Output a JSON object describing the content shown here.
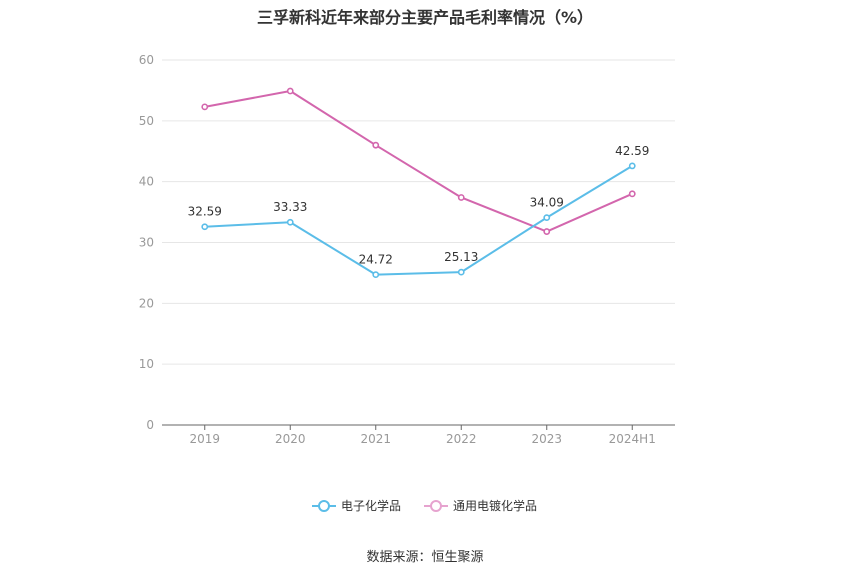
{
  "chart_data": {
    "type": "line",
    "title": "三孚新科近年来部分主要产品毛利率情况（%）",
    "categories": [
      "2019",
      "2020",
      "2021",
      "2022",
      "2023",
      "2024H1"
    ],
    "ylim": [
      0,
      60
    ],
    "yticks": [
      0,
      10,
      20,
      30,
      40,
      50,
      60
    ],
    "grid": true,
    "legend_position": "bottom",
    "series": [
      {
        "name": "电子化学品",
        "values": [
          32.59,
          33.33,
          24.72,
          25.13,
          34.09,
          42.59
        ],
        "labels": [
          "32.59",
          "33.33",
          "24.72",
          "25.13",
          "34.09",
          "42.59"
        ],
        "color": "#5bbde8"
      },
      {
        "name": "通用电镀化学品",
        "values": [
          52.3,
          54.9,
          46.0,
          37.4,
          31.8,
          38.0
        ],
        "color": "#d366ad"
      }
    ]
  },
  "source": "数据来源：恒生聚源"
}
